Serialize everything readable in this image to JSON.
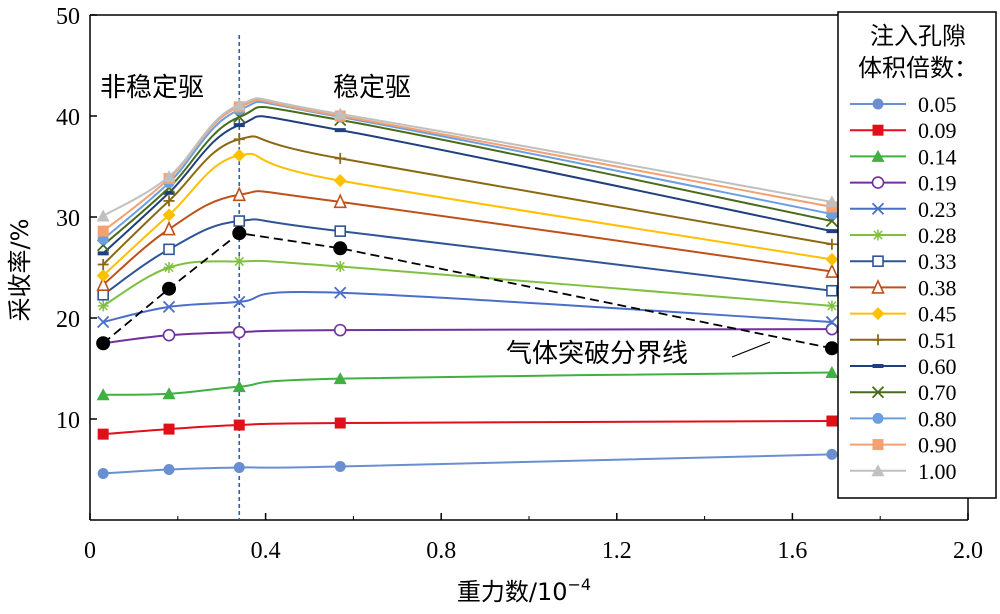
{
  "chart_data": {
    "type": "line",
    "xlabel": "重力数/10",
    "xlabel_sup": "−4",
    "ylabel": "采收率/%",
    "xlim": [
      0,
      2.0
    ],
    "ylim": [
      0,
      50
    ],
    "x_ticks": [
      "0",
      "0.4",
      "0.8",
      "1.2",
      "1.6",
      "2.0"
    ],
    "y_ticks": [
      "10",
      "20",
      "30",
      "40",
      "50"
    ],
    "grid": false,
    "legend_position": "right",
    "legend_title": [
      "注入孔隙",
      "体积倍数："
    ],
    "x": [
      0.03,
      0.18,
      0.34,
      0.57,
      1.69
    ],
    "series": [
      {
        "name": "0.05",
        "color": "#6a8fd0",
        "marker": "circle",
        "values": [
          4.6,
          5.0,
          5.2,
          5.3,
          6.5
        ]
      },
      {
        "name": "0.09",
        "color": "#e0101a",
        "marker": "square",
        "values": [
          8.5,
          9.0,
          9.4,
          9.6,
          9.8
        ]
      },
      {
        "name": "0.14",
        "color": "#40b040",
        "marker": "triangle",
        "values": [
          12.4,
          12.5,
          13.2,
          14.0,
          14.6
        ]
      },
      {
        "name": "0.19",
        "color": "#7030a0",
        "marker": "circle-open",
        "values": [
          17.5,
          18.3,
          18.6,
          18.8,
          18.9
        ]
      },
      {
        "name": "0.23",
        "color": "#4a6fc8",
        "marker": "x",
        "values": [
          19.6,
          21.1,
          21.6,
          22.5,
          19.6
        ]
      },
      {
        "name": "0.28",
        "color": "#80c040",
        "marker": "asterisk",
        "values": [
          21.2,
          25.0,
          25.6,
          25.1,
          21.2
        ]
      },
      {
        "name": "0.33",
        "color": "#2f5597",
        "marker": "square-open",
        "values": [
          22.3,
          26.8,
          29.6,
          28.6,
          22.7
        ]
      },
      {
        "name": "0.38",
        "color": "#c0501a",
        "marker": "triangle-open",
        "values": [
          23.3,
          28.8,
          32.2,
          31.5,
          24.6
        ]
      },
      {
        "name": "0.45",
        "color": "#ffc000",
        "marker": "diamond",
        "values": [
          24.2,
          30.2,
          36.1,
          33.6,
          25.8
        ]
      },
      {
        "name": "0.51",
        "color": "#8b6914",
        "marker": "plus",
        "values": [
          25.3,
          31.6,
          37.7,
          35.8,
          27.3
        ]
      },
      {
        "name": "0.60",
        "color": "#1f3f7f",
        "marker": "dash",
        "values": [
          26.4,
          32.4,
          39.1,
          38.6,
          28.6
        ]
      },
      {
        "name": "0.70",
        "color": "#4a6b1a",
        "marker": "x",
        "values": [
          27.2,
          32.9,
          39.9,
          39.6,
          29.6
        ]
      },
      {
        "name": "0.80",
        "color": "#6aa0e0",
        "marker": "circle",
        "values": [
          27.8,
          33.4,
          40.6,
          39.9,
          30.3
        ]
      },
      {
        "name": "0.90",
        "color": "#f4a070",
        "marker": "square",
        "values": [
          28.6,
          33.8,
          40.9,
          40.0,
          31.0
        ]
      },
      {
        "name": "1.00",
        "color": "#c0c0c0",
        "marker": "triangle",
        "values": [
          30.1,
          34.0,
          41.1,
          40.2,
          31.5
        ]
      }
    ],
    "breakthrough_line": {
      "label": "气体突破分界线",
      "x": [
        0.03,
        0.18,
        0.34,
        0.57,
        1.69
      ],
      "values": [
        17.5,
        22.9,
        28.4,
        26.9,
        17.0
      ]
    },
    "divider_x": 0.34,
    "region_labels": {
      "unstable": "非稳定驱",
      "stable": "稳定驱"
    }
  }
}
